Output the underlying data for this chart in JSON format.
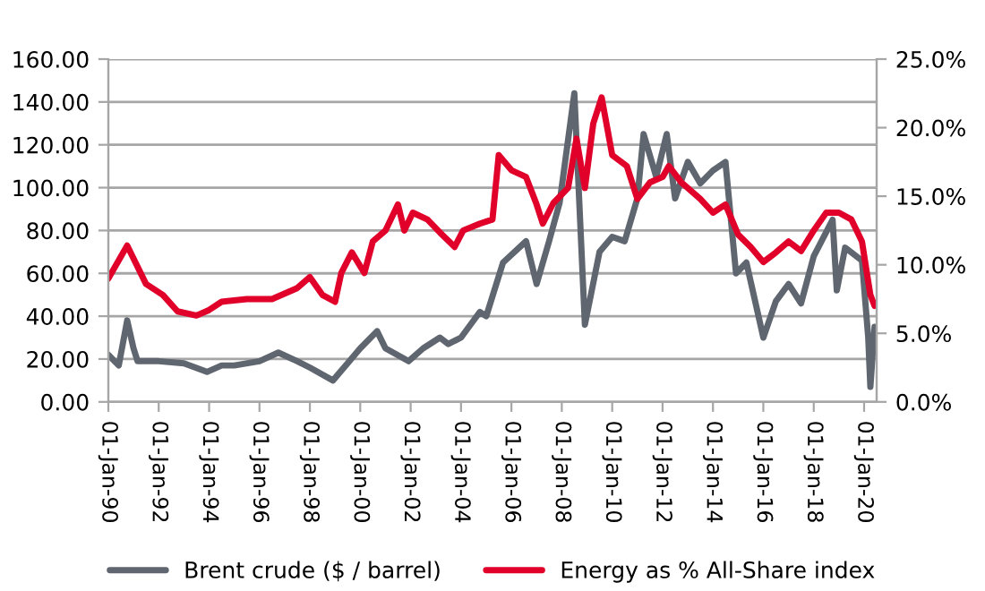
{
  "chart_data": {
    "type": "line",
    "series": [
      {
        "name": "Brent crude ($ / barrel)",
        "color": "#5f6670",
        "x": [
          "1990-01",
          "1990-06",
          "1990-10",
          "1991-01",
          "1991-03",
          "1992-01",
          "1993-01",
          "1993-12",
          "1994-07",
          "1995-01",
          "1996-01",
          "1996-10",
          "1997-07",
          "1998-01",
          "1998-12",
          "1999-07",
          "2000-01",
          "2000-09",
          "2001-01",
          "2001-12",
          "2002-07",
          "2003-03",
          "2003-07",
          "2004-01",
          "2004-10",
          "2005-01",
          "2005-09",
          "2006-08",
          "2007-01",
          "2007-07",
          "2007-12",
          "2008-07",
          "2008-12",
          "2009-07",
          "2010-01",
          "2010-07",
          "2011-01",
          "2011-04",
          "2011-10",
          "2012-03",
          "2012-07",
          "2013-01",
          "2013-07",
          "2014-01",
          "2014-07",
          "2014-12",
          "2015-05",
          "2016-01",
          "2016-07",
          "2017-01",
          "2017-07",
          "2018-01",
          "2018-10",
          "2018-12",
          "2019-04",
          "2019-12",
          "2020-03",
          "2020-04",
          "2020-06"
        ],
        "values": [
          22,
          17,
          38,
          25,
          19,
          19,
          18,
          14,
          17,
          17,
          19,
          23,
          19,
          16,
          10,
          18,
          25,
          33,
          25,
          19,
          25,
          30,
          27,
          30,
          42,
          40,
          65,
          75,
          55,
          75,
          93,
          144,
          36,
          70,
          77,
          75,
          95,
          125,
          105,
          125,
          95,
          112,
          102,
          108,
          112,
          60,
          65,
          30,
          47,
          55,
          46,
          68,
          85,
          52,
          72,
          66,
          30,
          7,
          35
        ]
      },
      {
        "name": "Energy as % All-Share index",
        "color": "#e0002a",
        "axis": "y2",
        "x": [
          "1990-01",
          "1990-10",
          "1991-07",
          "1992-03",
          "1992-10",
          "1993-07",
          "1994-01",
          "1994-07",
          "1995-07",
          "1996-07",
          "1997-07",
          "1998-01",
          "1998-07",
          "1999-01",
          "1999-04",
          "1999-09",
          "2000-03",
          "2000-07",
          "2001-01",
          "2001-07",
          "2001-10",
          "2002-02",
          "2002-09",
          "2003-04",
          "2003-10",
          "2004-02",
          "2004-10",
          "2005-04",
          "2005-07",
          "2006-01",
          "2006-08",
          "2007-01",
          "2007-04",
          "2007-09",
          "2008-04",
          "2008-08",
          "2008-12",
          "2009-04",
          "2009-08",
          "2010-01",
          "2010-08",
          "2011-01",
          "2011-07",
          "2012-01",
          "2012-04",
          "2012-10",
          "2013-07",
          "2014-01",
          "2014-07",
          "2015-01",
          "2015-07",
          "2016-01",
          "2016-07",
          "2017-01",
          "2017-07",
          "2018-01",
          "2018-07",
          "2019-01",
          "2019-07",
          "2019-12",
          "2020-02",
          "2020-04",
          "2020-06"
        ],
        "values": [
          9.0,
          11.4,
          8.6,
          7.8,
          6.6,
          6.3,
          6.7,
          7.3,
          7.5,
          7.5,
          8.3,
          9.1,
          7.8,
          7.3,
          9.4,
          10.9,
          9.4,
          11.7,
          12.5,
          14.4,
          12.5,
          13.8,
          13.3,
          12.2,
          11.3,
          12.5,
          13.0,
          13.3,
          18.0,
          16.9,
          16.4,
          14.4,
          13.0,
          14.5,
          15.6,
          19.2,
          15.6,
          20.3,
          22.2,
          18.0,
          17.2,
          14.8,
          16.0,
          16.4,
          17.2,
          16.0,
          14.8,
          13.8,
          14.4,
          12.2,
          11.3,
          10.2,
          10.9,
          11.7,
          11.0,
          12.5,
          13.8,
          13.8,
          13.3,
          11.7,
          9.7,
          7.8,
          7.0
        ]
      }
    ],
    "xlim": [
      "1990-01-01",
      "2020-07-01"
    ],
    "xticks": [
      {
        "value": "1990-01-01",
        "label": "01-Jan-90"
      },
      {
        "value": "1992-01-01",
        "label": "01-Jan-92"
      },
      {
        "value": "1994-01-01",
        "label": "01-Jan-94"
      },
      {
        "value": "1996-01-01",
        "label": "01-Jan-96"
      },
      {
        "value": "1998-01-01",
        "label": "01-Jan-98"
      },
      {
        "value": "2000-01-01",
        "label": "01-Jan-00"
      },
      {
        "value": "2002-01-01",
        "label": "01-Jan-02"
      },
      {
        "value": "2004-01-01",
        "label": "01-Jan-04"
      },
      {
        "value": "2006-01-01",
        "label": "01-Jan-06"
      },
      {
        "value": "2008-01-01",
        "label": "01-Jan-08"
      },
      {
        "value": "2010-01-01",
        "label": "01-Jan-10"
      },
      {
        "value": "2012-01-01",
        "label": "01-Jan-12"
      },
      {
        "value": "2014-01-01",
        "label": "01-Jan-14"
      },
      {
        "value": "2016-01-01",
        "label": "01-Jan-16"
      },
      {
        "value": "2018-01-01",
        "label": "01-Jan-18"
      },
      {
        "value": "2020-01-01",
        "label": "01-Jan-20"
      }
    ],
    "ylim": [
      0,
      160
    ],
    "yticks": [
      {
        "value": 0,
        "label": "0.00"
      },
      {
        "value": 20,
        "label": "20.00"
      },
      {
        "value": 40,
        "label": "40.00"
      },
      {
        "value": 60,
        "label": "60.00"
      },
      {
        "value": 80,
        "label": "80.00"
      },
      {
        "value": 100,
        "label": "100.00"
      },
      {
        "value": 120,
        "label": "120.00"
      },
      {
        "value": 140,
        "label": "140.00"
      },
      {
        "value": 160,
        "label": "160.00"
      }
    ],
    "y2lim": [
      0,
      25
    ],
    "y2ticks": [
      {
        "value": 0,
        "label": "0.0%"
      },
      {
        "value": 5,
        "label": "5.0%"
      },
      {
        "value": 10,
        "label": "10.0%"
      },
      {
        "value": 15,
        "label": "15.0%"
      },
      {
        "value": 20,
        "label": "20.0%"
      },
      {
        "value": 25,
        "label": "25.0%"
      }
    ],
    "grid": "y",
    "legend": "bottom",
    "line_style": "solid",
    "marker": "none"
  }
}
